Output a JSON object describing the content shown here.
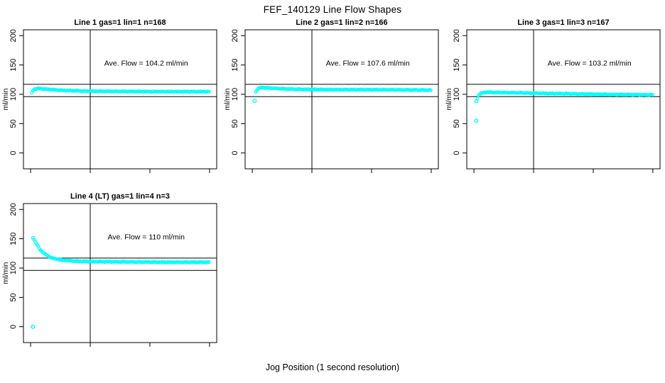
{
  "page": {
    "background": "#ffffff",
    "text_color": "#000000"
  },
  "chart_data": {
    "type": "scatter",
    "title": "FEF_140129  Line Flow Shapes",
    "xlabel": "Jog Position (1 second resolution)",
    "ylabel": "ml/min",
    "xlim": [
      -6,
      156
    ],
    "ylim": [
      -27,
      210
    ],
    "xticks": [
      0,
      50,
      100,
      150
    ],
    "yticks": [
      0,
      50,
      100,
      150,
      200
    ],
    "grid": false,
    "legend": "none",
    "point_color": "#00ffff",
    "axis_color": "#000000",
    "reference_lines": {
      "hline_upper": 117,
      "hline_lower": 96,
      "vline_x": 50
    },
    "panels": [
      {
        "title": "Line 1 gas=1 lin=1 n=168",
        "ave_flow_label": "Ave. Flow =  104.2  ml/min",
        "ave_flow": 104.2,
        "n": 168,
        "curve": [
          [
            1,
            102
          ],
          [
            2,
            107
          ],
          [
            4,
            109.5
          ],
          [
            7,
            110
          ],
          [
            12,
            109
          ],
          [
            20,
            107.5
          ],
          [
            30,
            106.5
          ],
          [
            45,
            105.5
          ],
          [
            70,
            105
          ],
          [
            110,
            104.5
          ],
          [
            150,
            104.5
          ]
        ],
        "outliers": []
      },
      {
        "title": "Line 2 gas=1 lin=2 n=166",
        "ave_flow_label": "Ave. Flow =  107.6  ml/min",
        "ave_flow": 107.6,
        "n": 166,
        "curve": [
          [
            3,
            104
          ],
          [
            5,
            110
          ],
          [
            8,
            111.5
          ],
          [
            12,
            111
          ],
          [
            20,
            110
          ],
          [
            30,
            109
          ],
          [
            45,
            108.3
          ],
          [
            70,
            107.8
          ],
          [
            100,
            107.8
          ],
          [
            130,
            107.5
          ],
          [
            150,
            107
          ]
        ],
        "outliers": [
          [
            2,
            89
          ]
        ]
      },
      {
        "title": "Line 3 gas=1 lin=3 n=167",
        "ave_flow_label": "Ave. Flow =  103.2  ml/min",
        "ave_flow": 103.2,
        "n": 167,
        "curve": [
          [
            3,
            93
          ],
          [
            4,
            99
          ],
          [
            6,
            102
          ],
          [
            10,
            103.5
          ],
          [
            20,
            103
          ],
          [
            35,
            102.5
          ],
          [
            60,
            101.5
          ],
          [
            90,
            100.5
          ],
          [
            120,
            99.5
          ],
          [
            150,
            99
          ]
        ],
        "outliers": [
          [
            2,
            88
          ],
          [
            2,
            55
          ]
        ]
      },
      {
        "title": "Line 4 (LT) gas=1 lin=4 n=3",
        "ave_flow_label": "Ave. Flow =  110  ml/min",
        "ave_flow": 110,
        "n": 3,
        "curve": [
          [
            2,
            152
          ],
          [
            4,
            145
          ],
          [
            6,
            138
          ],
          [
            8,
            131
          ],
          [
            12,
            124
          ],
          [
            16,
            119
          ],
          [
            20,
            116
          ],
          [
            25,
            114
          ],
          [
            32,
            112.5
          ],
          [
            40,
            111.5
          ],
          [
            55,
            111
          ],
          [
            80,
            110.5
          ],
          [
            110,
            110
          ],
          [
            150,
            110
          ]
        ],
        "outliers": [
          [
            2,
            0
          ]
        ]
      }
    ]
  }
}
